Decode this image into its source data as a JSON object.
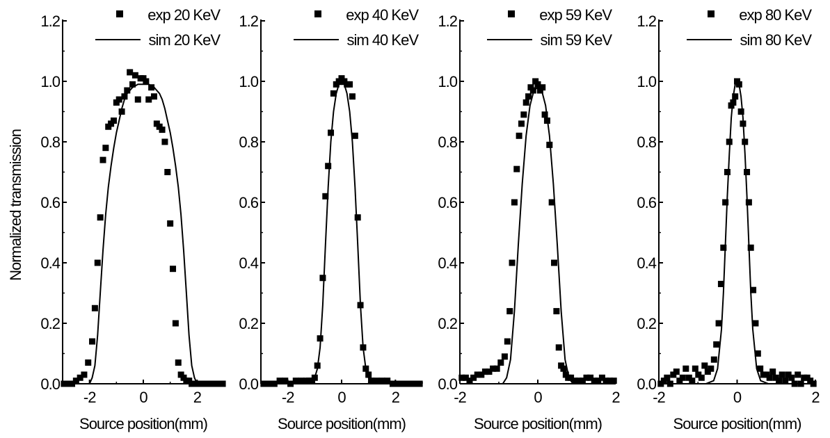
{
  "ylabel": "Normalized transmission",
  "chart_data": [
    {
      "type": "scatter",
      "xlabel": "Source position(mm)",
      "xlim": [
        -3,
        3
      ],
      "ylim": [
        0,
        1.2
      ],
      "xticks": [
        -2,
        0,
        2
      ],
      "yticks": [
        0.0,
        0.2,
        0.4,
        0.6,
        0.8,
        1.0,
        1.2
      ],
      "legend": "top-right",
      "series": [
        {
          "name": "exp 20 KeV",
          "style": "markers",
          "x": [
            -2.95,
            -2.8,
            -2.65,
            -2.5,
            -2.35,
            -2.2,
            -2.05,
            -1.9,
            -1.8,
            -1.7,
            -1.6,
            -1.5,
            -1.4,
            -1.3,
            -1.2,
            -1.1,
            -1.0,
            -0.9,
            -0.8,
            -0.7,
            -0.6,
            -0.5,
            -0.4,
            -0.3,
            -0.2,
            -0.1,
            0.0,
            0.1,
            0.2,
            0.3,
            0.4,
            0.5,
            0.6,
            0.7,
            0.8,
            0.9,
            1.0,
            1.1,
            1.2,
            1.3,
            1.4,
            1.5,
            1.6,
            1.7,
            1.8,
            1.9,
            2.05,
            2.2,
            2.35,
            2.5,
            2.65,
            2.8,
            2.95
          ],
          "y": [
            0.0,
            0.0,
            0.0,
            0.01,
            0.02,
            0.03,
            0.07,
            0.14,
            0.25,
            0.4,
            0.55,
            0.74,
            0.78,
            0.85,
            0.86,
            0.87,
            0.93,
            0.94,
            0.9,
            0.95,
            0.97,
            1.03,
            0.99,
            1.02,
            0.94,
            1.01,
            1.01,
            1.0,
            0.94,
            0.98,
            0.95,
            0.86,
            0.85,
            0.84,
            0.8,
            0.7,
            0.53,
            0.38,
            0.2,
            0.07,
            0.03,
            0.02,
            0.01,
            0.01,
            0.0,
            0.0,
            0.0,
            0.0,
            0.0,
            0.0,
            0.0,
            0.0,
            0.0
          ]
        },
        {
          "name": "sim 20 KeV",
          "style": "line",
          "x": [
            -3.0,
            -2.0,
            -1.9,
            -1.8,
            -1.7,
            -1.6,
            -1.5,
            -1.4,
            -1.3,
            -1.2,
            -1.1,
            -1.0,
            -0.9,
            -0.8,
            -0.7,
            -0.6,
            -0.4,
            -0.2,
            0.0,
            0.2,
            0.4,
            0.6,
            0.7,
            0.8,
            0.9,
            1.0,
            1.1,
            1.2,
            1.3,
            1.4,
            1.5,
            1.6,
            1.7,
            1.8,
            1.9,
            2.0,
            3.0
          ],
          "y": [
            0.0,
            0.0,
            0.02,
            0.06,
            0.16,
            0.3,
            0.44,
            0.56,
            0.65,
            0.72,
            0.78,
            0.83,
            0.87,
            0.91,
            0.94,
            0.96,
            0.98,
            0.99,
            0.99,
            0.99,
            0.98,
            0.96,
            0.94,
            0.91,
            0.87,
            0.83,
            0.78,
            0.72,
            0.65,
            0.56,
            0.44,
            0.3,
            0.16,
            0.06,
            0.02,
            0.0,
            0.0
          ]
        }
      ]
    },
    {
      "type": "scatter",
      "xlabel": "Source position(mm)",
      "xlim": [
        -3,
        3
      ],
      "ylim": [
        0,
        1.2
      ],
      "xticks": [
        -2,
        0,
        2
      ],
      "yticks": [
        0.0,
        0.2,
        0.4,
        0.6,
        0.8,
        1.0,
        1.2
      ],
      "legend": "top-right",
      "series": [
        {
          "name": "exp 40 KeV",
          "style": "markers",
          "x": [
            -2.9,
            -2.7,
            -2.5,
            -2.3,
            -2.1,
            -1.9,
            -1.7,
            -1.5,
            -1.3,
            -1.2,
            -1.1,
            -1.0,
            -0.9,
            -0.8,
            -0.7,
            -0.6,
            -0.5,
            -0.4,
            -0.3,
            -0.2,
            -0.1,
            0.0,
            0.1,
            0.2,
            0.3,
            0.4,
            0.5,
            0.6,
            0.7,
            0.8,
            0.9,
            1.0,
            1.1,
            1.3,
            1.5,
            1.7,
            1.9,
            2.1,
            2.3,
            2.5,
            2.7,
            2.9
          ],
          "y": [
            0.0,
            0.0,
            0.0,
            0.01,
            0.01,
            0.0,
            0.01,
            0.01,
            0.01,
            0.01,
            0.01,
            0.02,
            0.06,
            0.15,
            0.35,
            0.62,
            0.72,
            0.83,
            0.96,
            0.99,
            1.0,
            1.01,
            1.0,
            0.99,
            0.99,
            0.95,
            0.82,
            0.55,
            0.26,
            0.12,
            0.05,
            0.03,
            0.01,
            0.01,
            0.01,
            0.01,
            0.0,
            0.0,
            0.0,
            0.0,
            0.0,
            0.0
          ]
        },
        {
          "name": "sim 40 KeV",
          "style": "line",
          "x": [
            -3.0,
            -1.3,
            -1.1,
            -1.0,
            -0.9,
            -0.8,
            -0.7,
            -0.6,
            -0.5,
            -0.4,
            -0.3,
            -0.2,
            -0.1,
            0.0,
            0.1,
            0.2,
            0.3,
            0.4,
            0.5,
            0.6,
            0.7,
            0.8,
            0.9,
            1.0,
            1.1,
            1.3,
            3.0
          ],
          "y": [
            0.0,
            0.0,
            0.01,
            0.02,
            0.05,
            0.12,
            0.26,
            0.46,
            0.65,
            0.8,
            0.9,
            0.96,
            0.99,
            0.99,
            0.99,
            0.96,
            0.9,
            0.8,
            0.65,
            0.46,
            0.26,
            0.12,
            0.05,
            0.02,
            0.01,
            0.0,
            0.0
          ]
        }
      ]
    },
    {
      "type": "scatter",
      "xlabel": "Source position(mm)",
      "xlim": [
        -2,
        2
      ],
      "ylim": [
        0,
        1.2
      ],
      "xticks": [
        -2,
        0,
        2
      ],
      "yticks": [
        0.0,
        0.2,
        0.4,
        0.6,
        0.8,
        1.0,
        1.2
      ],
      "legend": "top-right",
      "series": [
        {
          "name": "exp 59 KeV",
          "style": "markers",
          "x": [
            -1.95,
            -1.85,
            -1.75,
            -1.65,
            -1.55,
            -1.45,
            -1.35,
            -1.25,
            -1.15,
            -1.05,
            -0.95,
            -0.85,
            -0.78,
            -0.72,
            -0.66,
            -0.6,
            -0.54,
            -0.48,
            -0.42,
            -0.36,
            -0.3,
            -0.24,
            -0.18,
            -0.12,
            -0.06,
            0.0,
            0.06,
            0.12,
            0.18,
            0.24,
            0.3,
            0.36,
            0.42,
            0.48,
            0.54,
            0.6,
            0.66,
            0.72,
            0.78,
            0.85,
            0.95,
            1.05,
            1.15,
            1.25,
            1.35,
            1.45,
            1.55,
            1.65,
            1.75,
            1.85,
            1.95
          ],
          "y": [
            0.02,
            0.02,
            0.01,
            0.02,
            0.03,
            0.03,
            0.04,
            0.04,
            0.05,
            0.05,
            0.07,
            0.09,
            0.14,
            0.24,
            0.4,
            0.6,
            0.71,
            0.82,
            0.86,
            0.89,
            0.93,
            0.95,
            0.98,
            0.97,
            1.0,
            0.99,
            0.97,
            0.98,
            0.89,
            0.87,
            0.79,
            0.6,
            0.4,
            0.24,
            0.12,
            0.06,
            0.05,
            0.03,
            0.02,
            0.02,
            0.01,
            0.01,
            0.01,
            0.02,
            0.02,
            0.01,
            0.01,
            0.02,
            0.01,
            0.01,
            0.01
          ]
        },
        {
          "name": "sim 59 KeV",
          "style": "line",
          "x": [
            -2.0,
            -0.9,
            -0.8,
            -0.7,
            -0.6,
            -0.5,
            -0.4,
            -0.3,
            -0.2,
            -0.1,
            0.0,
            0.1,
            0.2,
            0.3,
            0.4,
            0.5,
            0.6,
            0.7,
            0.8,
            0.9,
            2.0
          ],
          "y": [
            0.0,
            0.0,
            0.02,
            0.08,
            0.24,
            0.46,
            0.66,
            0.82,
            0.92,
            0.97,
            0.98,
            0.97,
            0.92,
            0.82,
            0.66,
            0.46,
            0.24,
            0.08,
            0.02,
            0.0,
            0.0
          ]
        }
      ]
    },
    {
      "type": "scatter",
      "xlabel": "Source position(mm)",
      "xlim": [
        -2,
        2
      ],
      "ylim": [
        0,
        1.2
      ],
      "xticks": [
        -2,
        0,
        2
      ],
      "yticks": [
        0.0,
        0.2,
        0.4,
        0.6,
        0.8,
        1.0,
        1.2
      ],
      "legend": "top-right",
      "series": [
        {
          "name": "exp 80 KeV",
          "style": "markers",
          "x": [
            -1.95,
            -1.87,
            -1.79,
            -1.71,
            -1.63,
            -1.55,
            -1.47,
            -1.39,
            -1.31,
            -1.23,
            -1.15,
            -1.07,
            -0.99,
            -0.91,
            -0.83,
            -0.75,
            -0.67,
            -0.59,
            -0.53,
            -0.47,
            -0.41,
            -0.35,
            -0.3,
            -0.25,
            -0.2,
            -0.15,
            -0.1,
            -0.05,
            0.0,
            0.05,
            0.1,
            0.15,
            0.2,
            0.25,
            0.3,
            0.35,
            0.41,
            0.47,
            0.53,
            0.59,
            0.67,
            0.75,
            0.83,
            0.91,
            0.99,
            1.07,
            1.15,
            1.23,
            1.31,
            1.39,
            1.47,
            1.55,
            1.63,
            1.71,
            1.79,
            1.87,
            1.95
          ],
          "y": [
            0.0,
            0.01,
            0.02,
            0.0,
            0.03,
            0.04,
            0.01,
            0.02,
            0.05,
            0.02,
            0.01,
            0.05,
            0.03,
            0.02,
            0.06,
            0.04,
            0.05,
            0.08,
            0.13,
            0.2,
            0.33,
            0.45,
            0.6,
            0.7,
            0.8,
            0.92,
            0.93,
            0.95,
            1.0,
            0.99,
            0.9,
            0.86,
            0.8,
            0.7,
            0.6,
            0.45,
            0.31,
            0.2,
            0.1,
            0.05,
            0.03,
            0.03,
            0.02,
            0.04,
            0.02,
            0.01,
            0.03,
            0.01,
            0.03,
            0.02,
            0.0,
            0.03,
            0.0,
            0.02,
            0.02,
            0.01,
            0.0
          ]
        },
        {
          "name": "sim 80 KeV",
          "style": "line",
          "x": [
            -2.0,
            -0.8,
            -0.6,
            -0.5,
            -0.4,
            -0.35,
            -0.3,
            -0.25,
            -0.2,
            -0.15,
            -0.1,
            -0.05,
            0.0,
            0.05,
            0.1,
            0.15,
            0.2,
            0.25,
            0.3,
            0.35,
            0.4,
            0.5,
            0.6,
            0.8,
            2.0
          ],
          "y": [
            0.0,
            0.0,
            0.01,
            0.05,
            0.18,
            0.3,
            0.46,
            0.62,
            0.76,
            0.88,
            0.95,
            0.99,
            1.0,
            0.99,
            0.95,
            0.88,
            0.76,
            0.62,
            0.46,
            0.3,
            0.18,
            0.05,
            0.01,
            0.0,
            0.0
          ]
        }
      ]
    }
  ]
}
